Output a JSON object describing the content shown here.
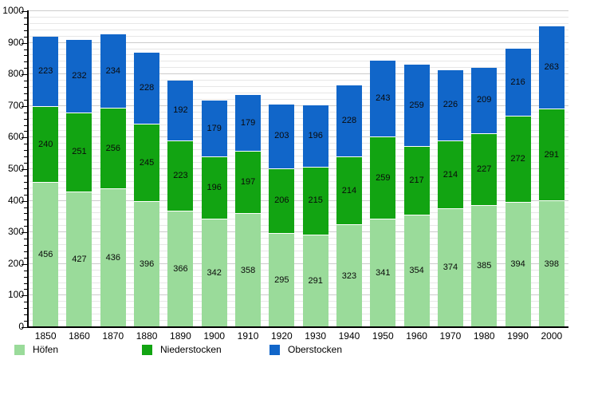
{
  "chart_data": {
    "type": "bar",
    "stacked": true,
    "title": "",
    "xlabel": "",
    "ylabel": "",
    "categories": [
      "1850",
      "1860",
      "1870",
      "1880",
      "1890",
      "1900",
      "1910",
      "1920",
      "1930",
      "1940",
      "1950",
      "1960",
      "1970",
      "1980",
      "1990",
      "2000"
    ],
    "series": [
      {
        "name": "Höfen",
        "color": "#9ADB9A",
        "values": [
          456,
          427,
          436,
          396,
          366,
          342,
          358,
          295,
          291,
          323,
          341,
          354,
          374,
          385,
          394,
          398
        ]
      },
      {
        "name": "Niederstocken",
        "color": "#12A412",
        "values": [
          240,
          251,
          256,
          245,
          223,
          196,
          197,
          206,
          215,
          214,
          259,
          217,
          214,
          227,
          272,
          291
        ]
      },
      {
        "name": "Oberstocken",
        "color": "#1166C9",
        "values": [
          223,
          232,
          234,
          228,
          192,
          179,
          179,
          203,
          196,
          228,
          243,
          259,
          226,
          209,
          216,
          263
        ]
      }
    ],
    "ylim": [
      0,
      1000
    ],
    "y_ticks": [
      0,
      100,
      200,
      300,
      400,
      500,
      600,
      700,
      800,
      900,
      1000
    ],
    "y_major_step": 100,
    "y_minor_step": 20,
    "grid": true,
    "legend_position": "bottom",
    "axis_color": "#000000",
    "grid_minor_color": "#e7e7e7",
    "grid_major_color": "#cccccc",
    "background_color": "#ffffff"
  }
}
